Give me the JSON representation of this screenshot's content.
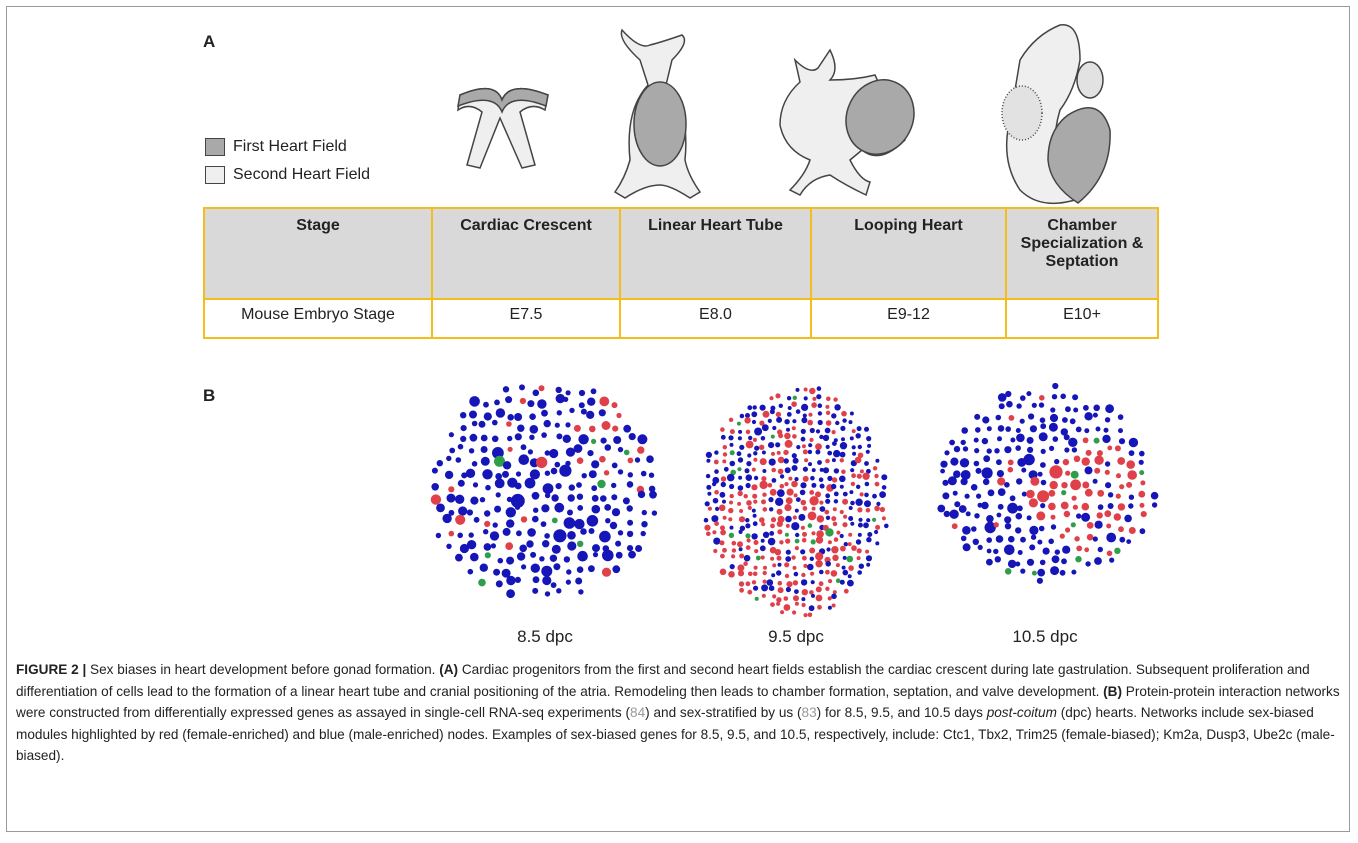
{
  "panel_a": {
    "label": "A",
    "legend": [
      "First Heart Field",
      "Second Heart Field"
    ],
    "table": {
      "header": [
        "Stage",
        "Cardiac Crescent",
        "Linear Heart Tube",
        "Looping Heart",
        "Chamber Specialization & Septation"
      ],
      "rows": [
        [
          "Mouse Embryo Stage",
          "E7.5",
          "E8.0",
          "E9-12",
          "E10+"
        ]
      ]
    }
  },
  "panel_b": {
    "label": "B",
    "networks": [
      "8.5 dpc",
      "9.5 dpc",
      "10.5 dpc"
    ]
  },
  "caption": {
    "segments": [
      "FIGURE 2 |",
      " Sex biases in heart development before gonad formation. ",
      "(A)",
      " Cardiac progenitors from the first and second heart fields establish the cardiac crescent during late gastrulation. Subsequent proliferation and differentiation of cells lead to the formation of a linear heart tube and cranial positioning of the atria. Remodeling then leads to chamber formation, septation, and valve development. ",
      "(B)",
      " Protein-protein interaction networks were constructed from differentially expressed genes as assayed in single-cell RNA-seq experiments (",
      "84",
      ") and sex-stratified by us (",
      "83",
      ") for 8.5, 9.5, and 10.5 days ",
      "post-coitum",
      " (dpc) hearts. Networks include sex-biased modules highlighted by red (female-enriched) and blue (male-enriched) nodes. Examples of sex-biased genes for 8.5, 9.5, and 10.5, respectively, include: Ctc1, Tbx2, Trim25 (female-biased); Km2a, Dusp3, Ube2c (male-biased)."
    ]
  }
}
